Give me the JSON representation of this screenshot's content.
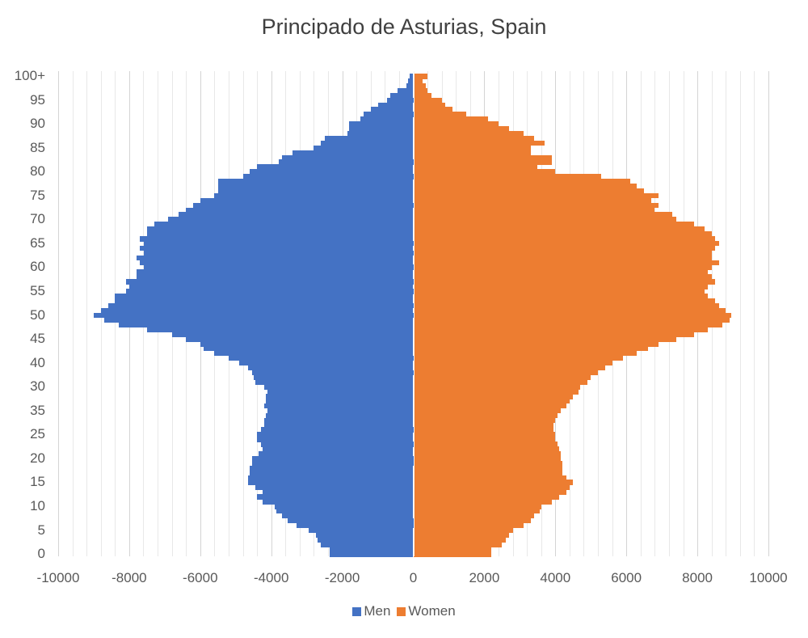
{
  "chart_data": {
    "type": "bar",
    "orientation": "horizontal",
    "title": "Principado de Asturias, Spain",
    "xlabel": "",
    "ylabel": "",
    "xlim": [
      -10000,
      10000
    ],
    "x_ticks": [
      "-10000",
      "-8000",
      "-6000",
      "-4000",
      "-2000",
      "0",
      "2000",
      "4000",
      "6000",
      "8000",
      "10000"
    ],
    "x_tick_values": [
      -10000,
      -8000,
      -6000,
      -4000,
      -2000,
      0,
      2000,
      4000,
      6000,
      8000,
      10000
    ],
    "y_ticks": [
      "100+",
      "95",
      "90",
      "85",
      "80",
      "75",
      "70",
      "65",
      "60",
      "55",
      "50",
      "45",
      "40",
      "30",
      "35",
      "25",
      "20",
      "15",
      "10",
      "5",
      "0"
    ],
    "grid": true,
    "legend_position": "bottom",
    "categories": [
      "0",
      "1",
      "2",
      "3",
      "4",
      "5",
      "6",
      "7",
      "8",
      "9",
      "10",
      "11",
      "12",
      "13",
      "14",
      "15",
      "16",
      "17",
      "18",
      "19",
      "20",
      "21",
      "22",
      "23",
      "24",
      "25",
      "26",
      "27",
      "28",
      "29",
      "30",
      "31",
      "32",
      "33",
      "34",
      "35",
      "36",
      "37",
      "38",
      "39",
      "40",
      "41",
      "42",
      "43",
      "44",
      "45",
      "46",
      "47",
      "48",
      "49",
      "50",
      "51",
      "52",
      "53",
      "54",
      "55",
      "56",
      "57",
      "58",
      "59",
      "60",
      "61",
      "62",
      "63",
      "64",
      "65",
      "66",
      "67",
      "68",
      "69",
      "70",
      "71",
      "72",
      "73",
      "74",
      "75",
      "76",
      "77",
      "78",
      "79",
      "80",
      "81",
      "82",
      "83",
      "84",
      "85",
      "86",
      "87",
      "88",
      "89",
      "90",
      "91",
      "92",
      "93",
      "94",
      "95",
      "96",
      "97",
      "98",
      "99",
      "100+"
    ],
    "series": [
      {
        "name": "Men",
        "color": "#4472c4",
        "values": [
          -2350,
          -2350,
          -2600,
          -2700,
          -2750,
          -2950,
          -3300,
          -3550,
          -3700,
          -3850,
          -3900,
          -4250,
          -4400,
          -4250,
          -4450,
          -4650,
          -4650,
          -4600,
          -4600,
          -4550,
          -4550,
          -4350,
          -4250,
          -4300,
          -4400,
          -4400,
          -4300,
          -4200,
          -4200,
          -4150,
          -4100,
          -4200,
          -4150,
          -4150,
          -4100,
          -4200,
          -4450,
          -4500,
          -4550,
          -4650,
          -4900,
          -5200,
          -5600,
          -5900,
          -6000,
          -6400,
          -6800,
          -7500,
          -8300,
          -8700,
          -9000,
          -8800,
          -8600,
          -8400,
          -8400,
          -8100,
          -8000,
          -8100,
          -7800,
          -7800,
          -7600,
          -7700,
          -7800,
          -7600,
          -7700,
          -7600,
          -7700,
          -7500,
          -7500,
          -7300,
          -6900,
          -6600,
          -6400,
          -6200,
          -6000,
          -5600,
          -5500,
          -5500,
          -5500,
          -4800,
          -4600,
          -4400,
          -3800,
          -3700,
          -3400,
          -2800,
          -2600,
          -2500,
          -1850,
          -1800,
          -1800,
          -1500,
          -1400,
          -1200,
          -1000,
          -750,
          -650,
          -450,
          -200,
          -150,
          -100
        ]
      },
      {
        "name": "Women",
        "color": "#ed7d31",
        "values": [
          2200,
          2200,
          2500,
          2600,
          2700,
          2800,
          3100,
          3300,
          3400,
          3550,
          3600,
          3900,
          4100,
          4300,
          4400,
          4500,
          4300,
          4200,
          4200,
          4200,
          4150,
          4150,
          4100,
          4050,
          4000,
          4000,
          3950,
          3950,
          4000,
          4050,
          4150,
          4300,
          4400,
          4500,
          4650,
          4700,
          4900,
          5000,
          5200,
          5400,
          5600,
          5900,
          6300,
          6600,
          6900,
          7400,
          7900,
          8300,
          8700,
          8900,
          8950,
          8800,
          8600,
          8500,
          8300,
          8200,
          8300,
          8500,
          8400,
          8300,
          8400,
          8600,
          8400,
          8400,
          8500,
          8600,
          8500,
          8400,
          8200,
          7900,
          7400,
          7300,
          6800,
          6900,
          6700,
          6900,
          6500,
          6300,
          6100,
          5300,
          4000,
          3500,
          3900,
          3900,
          3300,
          3300,
          3700,
          3400,
          3100,
          2700,
          2400,
          2100,
          1500,
          1100,
          900,
          800,
          500,
          400,
          350,
          250,
          400
        ]
      }
    ]
  },
  "legend": {
    "items": [
      {
        "label": "Men",
        "color": "#4472c4"
      },
      {
        "label": "Women",
        "color": "#ed7d31"
      }
    ]
  }
}
